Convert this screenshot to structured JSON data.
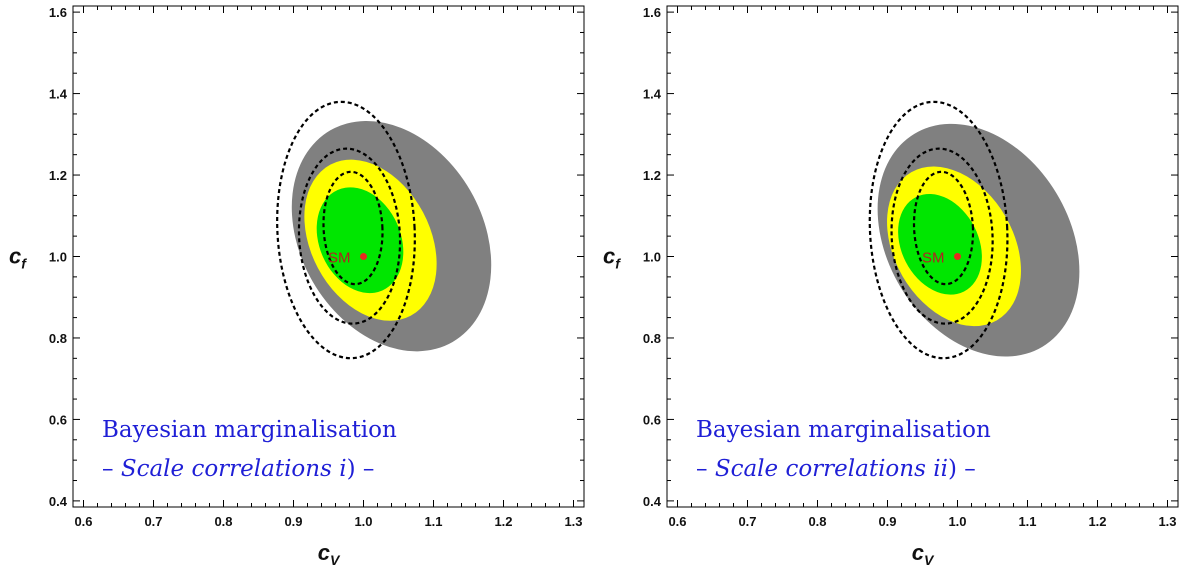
{
  "chart_data": [
    {
      "type": "contour",
      "xlabel": "c",
      "xlabel_sub": "V",
      "ylabel": "c",
      "ylabel_sub": "f",
      "xlim": [
        0.585,
        1.315
      ],
      "ylim": [
        0.385,
        1.615
      ],
      "xticks": [
        "0.6",
        "0.7",
        "0.8",
        "0.9",
        "1.0",
        "1.1",
        "1.2",
        "1.3"
      ],
      "yticks": [
        "0.4",
        "0.6",
        "0.8",
        "1.0",
        "1.2",
        "1.4",
        "1.6"
      ],
      "grid": false,
      "regions": [
        {
          "name": "gray",
          "color": "#808080",
          "center": [
            1.04,
            1.05
          ],
          "semi_axes": [
            0.13,
            0.3
          ],
          "rotation_deg": 30
        },
        {
          "name": "yellow",
          "color": "#ffff00",
          "center": [
            1.01,
            1.04
          ],
          "semi_axes": [
            0.085,
            0.21
          ],
          "rotation_deg": 28
        },
        {
          "name": "green",
          "color": "#00e600",
          "center": [
            0.995,
            1.04
          ],
          "semi_axes": [
            0.058,
            0.135
          ],
          "rotation_deg": 24
        }
      ],
      "dashed_contours": [
        {
          "center": [
            0.975,
            1.065
          ],
          "semi_axes": [
            0.098,
            0.315
          ],
          "rotation_deg": 3
        },
        {
          "center": [
            0.98,
            1.05
          ],
          "semi_axes": [
            0.072,
            0.215
          ],
          "rotation_deg": 3
        },
        {
          "center": [
            0.985,
            1.07
          ],
          "semi_axes": [
            0.042,
            0.138
          ],
          "rotation_deg": 3
        }
      ],
      "points": [
        {
          "label": "SM",
          "x": 1.0,
          "y": 1.0,
          "color": "#e8291f"
        }
      ],
      "annotation_line1": "Bayesian marginalisation",
      "annotation_line2_prefix": "– ",
      "annotation_line2_italic": "Scale correlations i",
      "annotation_line2_suffix": ")  –"
    },
    {
      "type": "contour",
      "xlabel": "c",
      "xlabel_sub": "V",
      "ylabel": "c",
      "ylabel_sub": "f",
      "xlim": [
        0.585,
        1.315
      ],
      "ylim": [
        0.385,
        1.615
      ],
      "xticks": [
        "0.6",
        "0.7",
        "0.8",
        "0.9",
        "1.0",
        "1.1",
        "1.2",
        "1.3"
      ],
      "yticks": [
        "0.4",
        "0.6",
        "0.8",
        "1.0",
        "1.2",
        "1.4",
        "1.6"
      ],
      "grid": false,
      "regions": [
        {
          "name": "gray",
          "color": "#808080",
          "center": [
            1.03,
            1.04
          ],
          "semi_axes": [
            0.13,
            0.305
          ],
          "rotation_deg": 31
        },
        {
          "name": "yellow",
          "color": "#ffff00",
          "center": [
            0.995,
            1.025
          ],
          "semi_axes": [
            0.085,
            0.21
          ],
          "rotation_deg": 30
        },
        {
          "name": "green",
          "color": "#00e600",
          "center": [
            0.975,
            1.03
          ],
          "semi_axes": [
            0.055,
            0.13
          ],
          "rotation_deg": 27
        }
      ],
      "dashed_contours": [
        {
          "center": [
            0.973,
            1.065
          ],
          "semi_axes": [
            0.098,
            0.315
          ],
          "rotation_deg": 3
        },
        {
          "center": [
            0.978,
            1.05
          ],
          "semi_axes": [
            0.072,
            0.215
          ],
          "rotation_deg": 3
        },
        {
          "center": [
            0.98,
            1.07
          ],
          "semi_axes": [
            0.042,
            0.138
          ],
          "rotation_deg": 3
        }
      ],
      "points": [
        {
          "label": "SM",
          "x": 1.0,
          "y": 1.0,
          "color": "#e8291f"
        }
      ],
      "annotation_line1": "Bayesian marginalisation",
      "annotation_line2_prefix": "– ",
      "annotation_line2_italic": "Scale correlations ii",
      "annotation_line2_suffix": ")  –"
    }
  ]
}
